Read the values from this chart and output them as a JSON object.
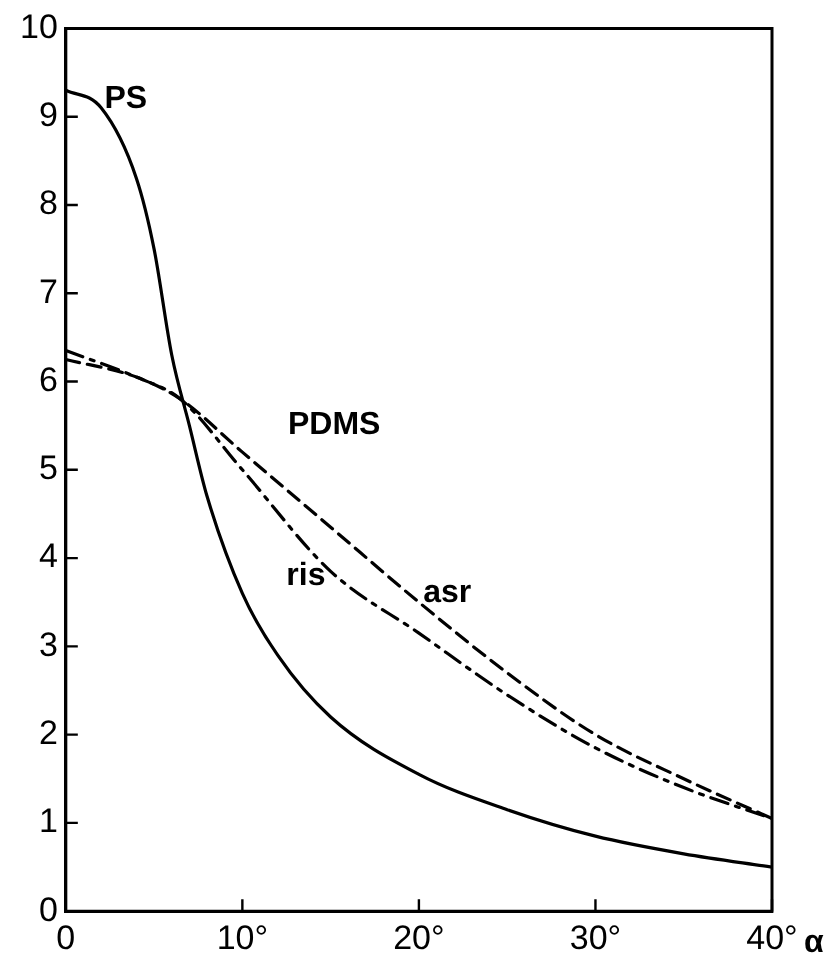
{
  "chart_data": {
    "type": "line",
    "xlabel": "α",
    "xlim": [
      0,
      40
    ],
    "ylim": [
      0,
      10
    ],
    "xticks": [
      0,
      {
        "value": 10,
        "label": "10°"
      },
      {
        "value": 20,
        "label": "20°"
      },
      {
        "value": 30,
        "label": "30°"
      },
      {
        "value": 40,
        "label": "40°"
      }
    ],
    "yticks": [
      0,
      1,
      2,
      3,
      4,
      5,
      6,
      7,
      8,
      9,
      10
    ],
    "grid": false,
    "legend": false,
    "marker": "none",
    "series": [
      {
        "name": "PS",
        "color": "#000000",
        "line_style": "solid",
        "x": [
          0,
          2,
          4,
          5,
          6,
          7,
          8,
          10,
          12,
          15,
          20,
          25,
          30,
          35,
          40
        ],
        "values": [
          9.3,
          9.1,
          8.3,
          7.5,
          6.3,
          5.5,
          4.7,
          3.6,
          2.9,
          2.2,
          1.55,
          1.15,
          0.85,
          0.65,
          0.5
        ]
      },
      {
        "name": "asr",
        "color": "#000000",
        "line_style": "dashed",
        "x": [
          0,
          4,
          6.5,
          10,
          15,
          20,
          25,
          30,
          35,
          40
        ],
        "values": [
          6.25,
          6.05,
          5.8,
          5.2,
          4.35,
          3.5,
          2.7,
          2.0,
          1.5,
          1.05
        ]
      },
      {
        "name": "ris",
        "color": "#000000",
        "line_style": "dashdot",
        "x": [
          0,
          4,
          6.5,
          10,
          15,
          20,
          25,
          30,
          35,
          40
        ],
        "values": [
          6.35,
          6.05,
          5.8,
          5.0,
          3.85,
          3.15,
          2.45,
          1.85,
          1.4,
          1.05
        ]
      }
    ],
    "annotations": [
      "PDMS"
    ]
  }
}
